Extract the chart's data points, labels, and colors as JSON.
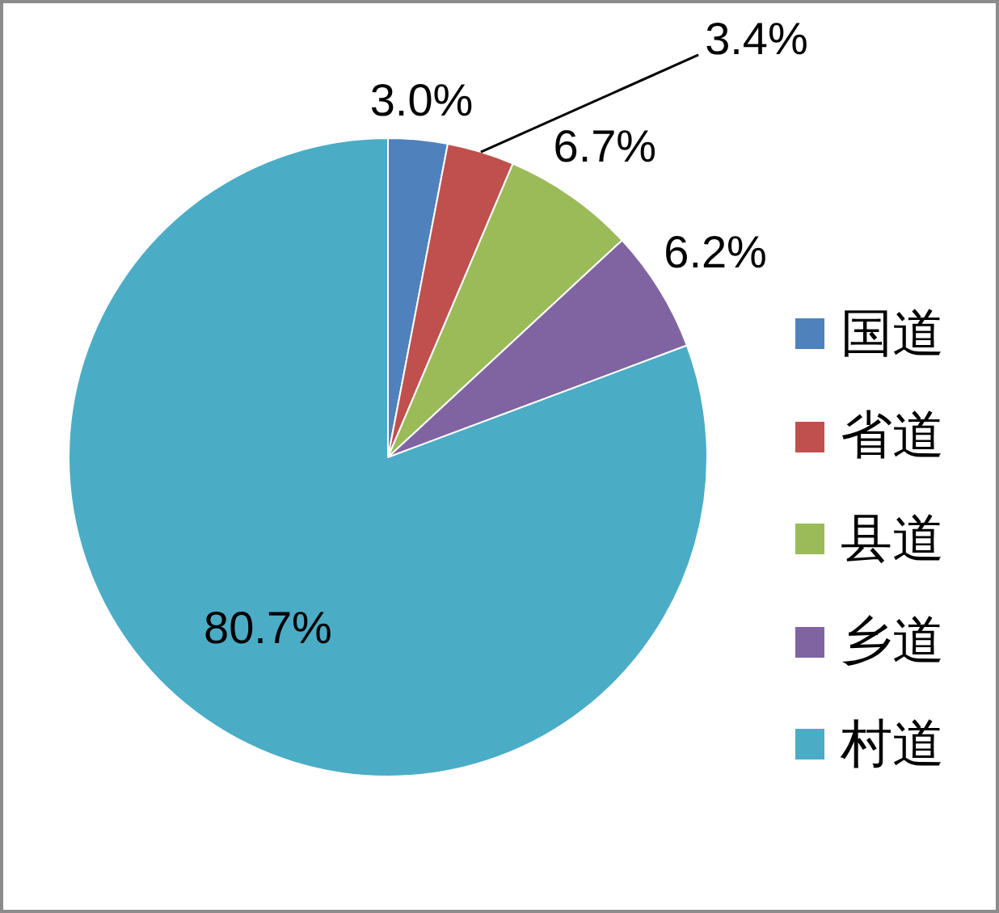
{
  "chart_data": {
    "type": "pie",
    "categories": [
      "国道",
      "省道",
      "县道",
      "乡道",
      "村道"
    ],
    "values": [
      3.0,
      3.4,
      6.7,
      6.2,
      80.7
    ],
    "colors": [
      "#4f81bd",
      "#c0504d",
      "#9bbb59",
      "#8064a2",
      "#4bacc6"
    ],
    "value_labels": [
      "3.0%",
      "3.4%",
      "6.7%",
      "6.2%",
      "80.7%"
    ],
    "legend": "right"
  }
}
